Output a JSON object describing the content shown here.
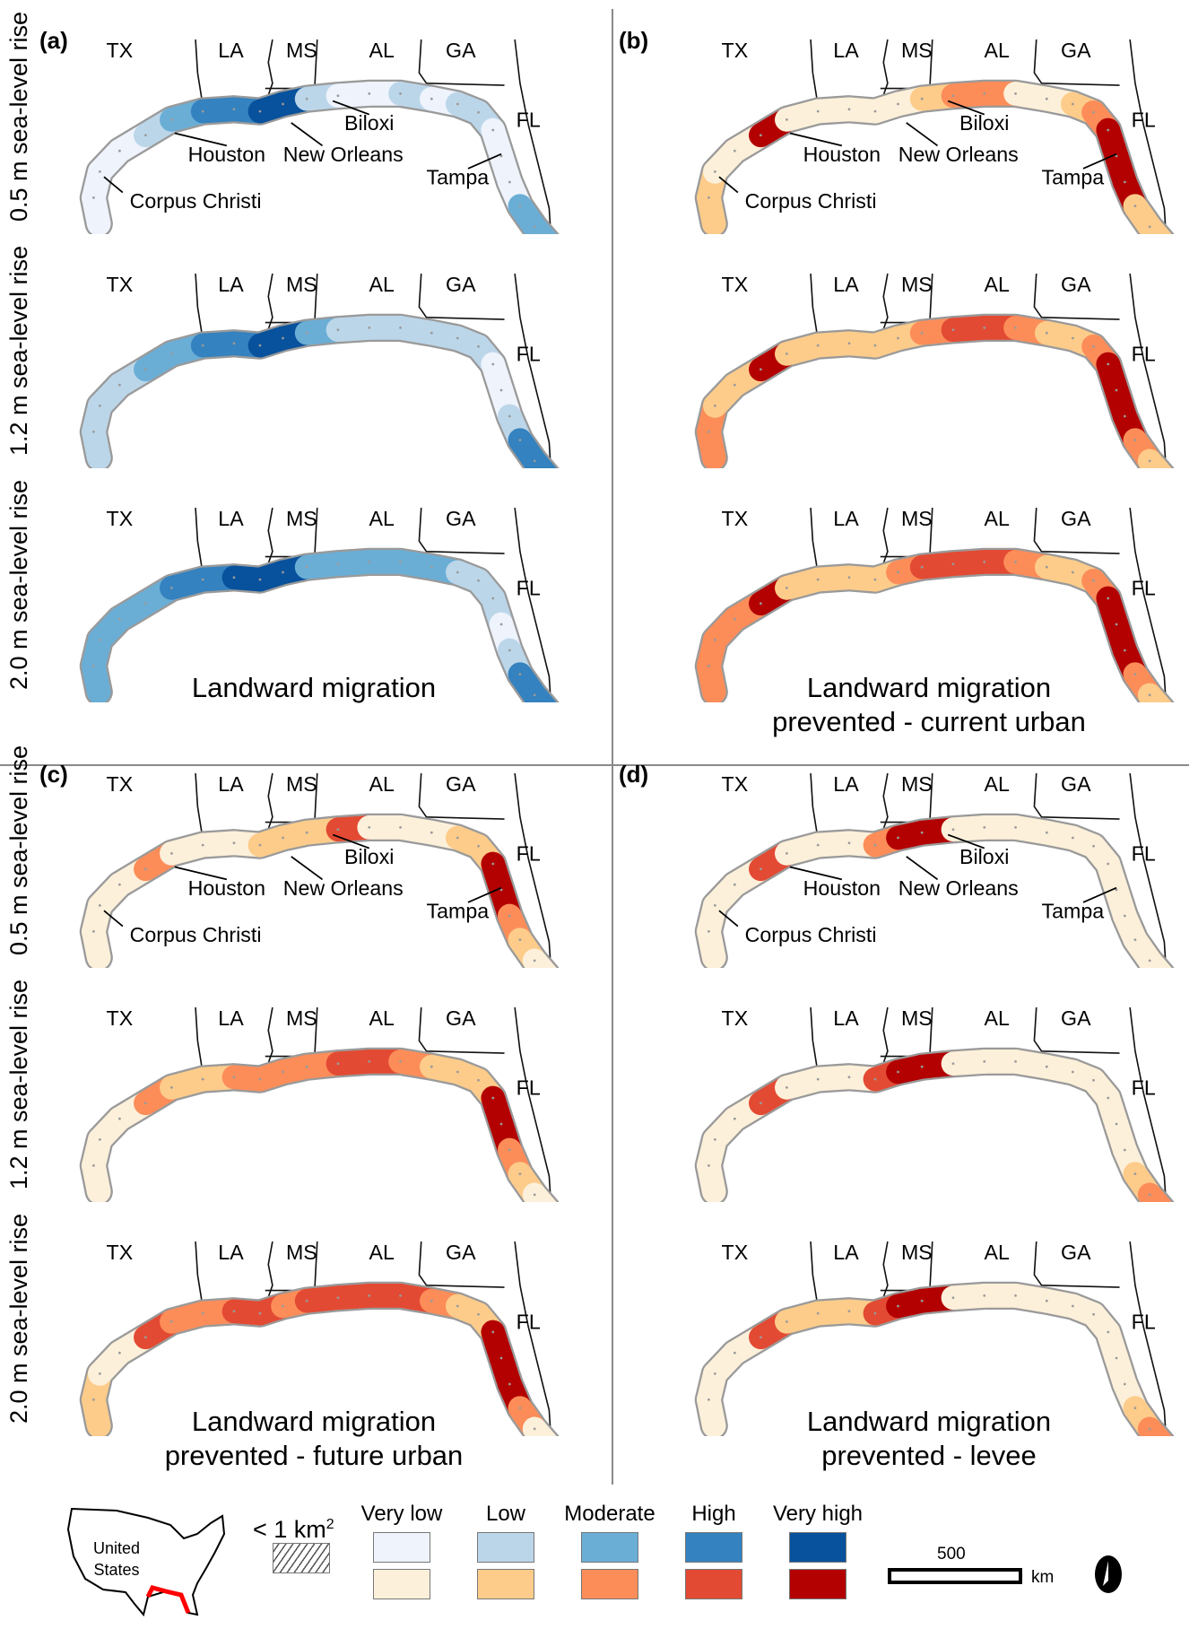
{
  "colors": {
    "blue": [
      "#eef3fc",
      "#bcd6e9",
      "#6aaed6",
      "#3482bf",
      "#08519c"
    ],
    "red": [
      "#fdf0da",
      "#fdcc8a",
      "#fc8d59",
      "#e34a33",
      "#b30000"
    ],
    "outline": "#9a9a9a"
  },
  "states": [
    "TX",
    "LA",
    "MS",
    "AL",
    "GA",
    "FL"
  ],
  "cities": [
    "Houston",
    "New Orleans",
    "Biloxi",
    "Tampa",
    "Corpus Christi"
  ],
  "panels": [
    {
      "id": "a",
      "label": "(a)",
      "palette": "blue",
      "title": [
        "Landward migration"
      ],
      "show_side": true,
      "rows": [
        {
          "label": "0.5 m sea-level rise",
          "cities": true,
          "levels": [
            0,
            0,
            0,
            0,
            1,
            2,
            3,
            3,
            4,
            4,
            1,
            0,
            0,
            1,
            0,
            1,
            1,
            0,
            0,
            0,
            2,
            2
          ]
        },
        {
          "label": "1.2 m sea-level rise",
          "cities": false,
          "levels": [
            1,
            1,
            1,
            1,
            2,
            2,
            3,
            3,
            4,
            4,
            2,
            1,
            1,
            1,
            1,
            1,
            1,
            0,
            0,
            1,
            3,
            3
          ]
        },
        {
          "label": "2.0 m sea-level rise",
          "cities": false,
          "levels": [
            2,
            2,
            2,
            2,
            2,
            3,
            3,
            4,
            4,
            4,
            2,
            2,
            2,
            2,
            2,
            1,
            1,
            1,
            0,
            1,
            3,
            3
          ]
        }
      ]
    },
    {
      "id": "b",
      "label": "(b)",
      "palette": "red",
      "title": [
        "Landward migration",
        "prevented - current urban"
      ],
      "show_side": false,
      "rows": [
        {
          "label": "",
          "cities": true,
          "levels": [
            1,
            1,
            0,
            0,
            4,
            0,
            0,
            0,
            0,
            0,
            1,
            2,
            2,
            0,
            0,
            1,
            2,
            4,
            4,
            4,
            1,
            1
          ]
        },
        {
          "label": "",
          "cities": false,
          "levels": [
            2,
            2,
            1,
            1,
            4,
            1,
            1,
            1,
            1,
            1,
            2,
            3,
            3,
            2,
            1,
            1,
            2,
            4,
            4,
            4,
            2,
            1
          ]
        },
        {
          "label": "",
          "cities": false,
          "levels": [
            2,
            2,
            2,
            2,
            4,
            1,
            1,
            1,
            1,
            2,
            3,
            3,
            3,
            2,
            1,
            1,
            2,
            4,
            4,
            4,
            2,
            1
          ]
        }
      ]
    },
    {
      "id": "c",
      "label": "(c)",
      "palette": "red",
      "title": [
        "Landward migration",
        "prevented - future urban"
      ],
      "show_side": true,
      "rows": [
        {
          "label": "0.5 m sea-level rise",
          "cities": true,
          "levels": [
            0,
            0,
            0,
            0,
            2,
            0,
            0,
            0,
            1,
            1,
            1,
            3,
            0,
            0,
            0,
            1,
            1,
            4,
            4,
            2,
            1,
            0
          ]
        },
        {
          "label": "1.2 m sea-level rise",
          "cities": false,
          "levels": [
            0,
            0,
            0,
            0,
            2,
            1,
            1,
            2,
            2,
            2,
            2,
            3,
            3,
            2,
            1,
            1,
            1,
            4,
            4,
            2,
            1,
            0
          ]
        },
        {
          "label": "2.0 m sea-level rise",
          "cities": false,
          "levels": [
            1,
            1,
            0,
            0,
            3,
            2,
            2,
            3,
            3,
            2,
            3,
            3,
            3,
            3,
            2,
            1,
            1,
            4,
            4,
            4,
            2,
            0
          ]
        }
      ]
    },
    {
      "id": "d",
      "label": "(d)",
      "palette": "red",
      "title": [
        "Landward migration",
        "prevented - levee"
      ],
      "show_side": false,
      "rows": [
        {
          "label": "",
          "cities": true,
          "levels": [
            0,
            0,
            0,
            0,
            3,
            0,
            0,
            0,
            2,
            4,
            4,
            0,
            0,
            0,
            0,
            0,
            0,
            0,
            0,
            0,
            0,
            0
          ]
        },
        {
          "label": "",
          "cities": false,
          "levels": [
            0,
            0,
            0,
            0,
            3,
            0,
            0,
            0,
            3,
            4,
            4,
            0,
            0,
            0,
            0,
            0,
            0,
            0,
            0,
            0,
            1,
            2
          ]
        },
        {
          "label": "",
          "cities": false,
          "levels": [
            0,
            0,
            0,
            0,
            3,
            1,
            1,
            1,
            3,
            4,
            4,
            0,
            0,
            0,
            0,
            0,
            0,
            0,
            0,
            0,
            1,
            2
          ]
        }
      ]
    }
  ],
  "legend": {
    "inset_label": [
      "United",
      "States"
    ],
    "small_label": "< 1 km",
    "small_sup": "2",
    "categories": [
      "Very low",
      "Low",
      "Moderate",
      "High",
      "Very high"
    ],
    "scale_value": "500",
    "scale_unit": "km"
  }
}
